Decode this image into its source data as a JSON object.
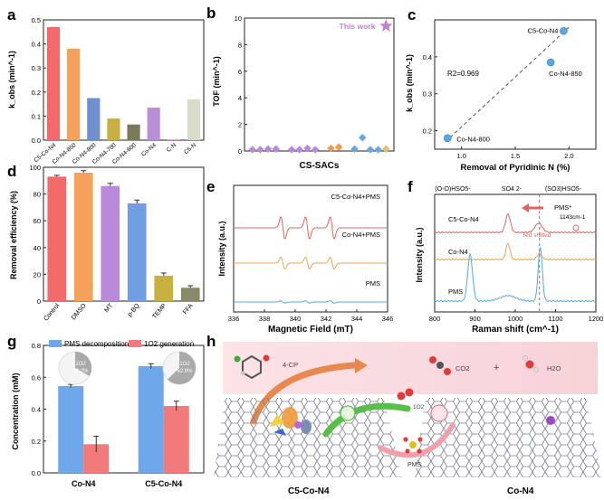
{
  "panel_letters": [
    "a",
    "b",
    "c",
    "d",
    "e",
    "f",
    "g",
    "h"
  ],
  "chart_data": [
    {
      "id": "a",
      "type": "bar",
      "ylabel": "k_obs (min^-1)",
      "ylim": [
        0,
        0.5
      ],
      "yticks": [
        0.0,
        0.1,
        0.2,
        0.3,
        0.4,
        0.5
      ],
      "categories": [
        "C5-Co-N4",
        "Co-N4-850",
        "Co-N4-800",
        "Co-N4-700",
        "Co-N4-600",
        "Co-N4",
        "C-N",
        "C5-N"
      ],
      "values": [
        0.47,
        0.38,
        0.175,
        0.09,
        0.065,
        0.135,
        0.003,
        0.17
      ],
      "colors": [
        "#f26a6a",
        "#f5a15c",
        "#6f8fd1",
        "#c8b040",
        "#7a7a5a",
        "#b88fd6",
        "#d9a0b0",
        "#d8dcc8"
      ]
    },
    {
      "id": "b",
      "type": "scatter",
      "xlabel": "CS-SACs",
      "ylabel": "TOF (min^-1)",
      "ylim": [
        0,
        10
      ],
      "yticks": [
        0,
        2,
        4,
        6,
        8,
        10
      ],
      "annotation": "This work",
      "highlight": {
        "x": 18,
        "y": 9.4,
        "color": "#c47fd0"
      },
      "points": [
        {
          "x": 1,
          "y": 0.1,
          "color": "#b98ad9"
        },
        {
          "x": 2,
          "y": 0.1,
          "color": "#b98ad9"
        },
        {
          "x": 3,
          "y": 0.15,
          "color": "#b98ad9"
        },
        {
          "x": 4,
          "y": 0.15,
          "color": "#b98ad9"
        },
        {
          "x": 6,
          "y": 0.1,
          "color": "#b98ad9"
        },
        {
          "x": 7,
          "y": 0.1,
          "color": "#b98ad9"
        },
        {
          "x": 8,
          "y": 0.2,
          "color": "#b98ad9"
        },
        {
          "x": 9,
          "y": 0.1,
          "color": "#b98ad9"
        },
        {
          "x": 11,
          "y": 0.2,
          "color": "#f29a4a"
        },
        {
          "x": 12,
          "y": 0.3,
          "color": "#f29a4a"
        },
        {
          "x": 14,
          "y": 0.15,
          "color": "#6aa7e0"
        },
        {
          "x": 15,
          "y": 1.0,
          "color": "#6aa7e0"
        },
        {
          "x": 16,
          "y": 0.1,
          "color": "#6aa7e0"
        },
        {
          "x": 17,
          "y": 0.1,
          "color": "#6aa7e0"
        },
        {
          "x": 18,
          "y": 0.15,
          "color": "#e3c070"
        }
      ]
    },
    {
      "id": "c",
      "type": "scatter",
      "xlabel": "Removal of Pyridinic N (%)",
      "ylabel": "k_obs (min^-1)",
      "xlim": [
        0.75,
        2.25
      ],
      "xticks": [
        1.0,
        1.5,
        2.0
      ],
      "ylim": [
        0.15,
        0.5
      ],
      "yticks": [
        0.2,
        0.3,
        0.4
      ],
      "r2_label": "R2=0.969",
      "points": [
        {
          "label": "Co-N4-800",
          "x": 0.87,
          "y": 0.18
        },
        {
          "label": "Co-N4-850",
          "x": 1.83,
          "y": 0.385
        },
        {
          "label": "C5-Co-N4",
          "x": 1.95,
          "y": 0.47
        }
      ],
      "fit_line": [
        [
          0.85,
          0.17
        ],
        [
          2.0,
          0.48
        ]
      ]
    },
    {
      "id": "d",
      "type": "bar",
      "ylabel": "Removal efficiency (%)",
      "ylim": [
        0,
        100
      ],
      "yticks": [
        0,
        20,
        40,
        60,
        80,
        100
      ],
      "categories": [
        "Control",
        "DMSO",
        "MT",
        "p-BQ",
        "TEMP",
        "FFA"
      ],
      "values": [
        93,
        96,
        86,
        73,
        19,
        10
      ],
      "errors": [
        1,
        1.5,
        2,
        2.5,
        2,
        1.5
      ],
      "colors": [
        "#f26a6a",
        "#f5a15c",
        "#b98ad9",
        "#6f9fe0",
        "#c8b040",
        "#8a8a6a"
      ]
    },
    {
      "id": "e",
      "type": "line",
      "xlabel": "Magnetic Field (mT)",
      "ylabel": "Intensity (a.u.)",
      "xlim": [
        336,
        346
      ],
      "xticks": [
        336,
        338,
        340,
        342,
        344,
        346
      ],
      "series": [
        {
          "name": "C5-Co-N4+PMS",
          "color": "#e0645f",
          "amplitude": 3.4
        },
        {
          "name": "Co-N4+PMS",
          "color": "#f0a24a",
          "amplitude": 1.8
        },
        {
          "name": "PMS",
          "color": "#5aa8e0",
          "amplitude": 0.35
        }
      ],
      "peak_fields": [
        339.2,
        340.8,
        342.4
      ]
    },
    {
      "id": "f",
      "type": "line",
      "xlabel": "Raman shift (cm^-1)",
      "ylabel": "Intensity (a.u.)",
      "xlim": [
        800,
        1200
      ],
      "xticks": [
        800,
        900,
        1000,
        1100,
        1200
      ],
      "top_labels": [
        "(O-O)HSO5-",
        "SO4 2-",
        "(SO3)HSO5-"
      ],
      "pms_label": "PMS*",
      "pms_peak": "1143cm-1",
      "shift_note": "red shifted",
      "series": [
        {
          "name": "C5-Co-N4",
          "color": "#e0645f"
        },
        {
          "name": "Co-N4",
          "color": "#f0a24a"
        },
        {
          "name": "PMS",
          "color": "#5aa8e0"
        }
      ],
      "reference_line": 1060
    },
    {
      "id": "g",
      "type": "bar",
      "ylabel": "Concentration (mM)",
      "ylim": [
        0,
        0.8
      ],
      "yticks": [
        0.0,
        0.2,
        0.4,
        0.6,
        0.8
      ],
      "categories": [
        "Co-N4",
        "C5-Co-N4"
      ],
      "series": [
        {
          "name": "PMS decomposition",
          "color": "#6fa8ea",
          "values": [
            0.545,
            0.67
          ],
          "errors": [
            0.01,
            0.015
          ]
        },
        {
          "name": "1O2 generation",
          "color": "#f27a7a",
          "values": [
            0.18,
            0.42
          ],
          "errors": [
            0.05,
            0.03
          ]
        }
      ],
      "pies": [
        {
          "label": "1O2",
          "value": "33.2%",
          "fraction": 0.332
        },
        {
          "label": "1O2",
          "value": "62.8%",
          "fraction": 0.628
        }
      ]
    }
  ],
  "panel_h": {
    "label_4cp": "4-CP",
    "label_co2": "CO2",
    "label_h2o": "H2O",
    "plus": "+",
    "label_o2": "1O2",
    "label_pms": "PMS",
    "left_catalyst": "C5-Co-N4",
    "right_catalyst": "Co-N4"
  }
}
